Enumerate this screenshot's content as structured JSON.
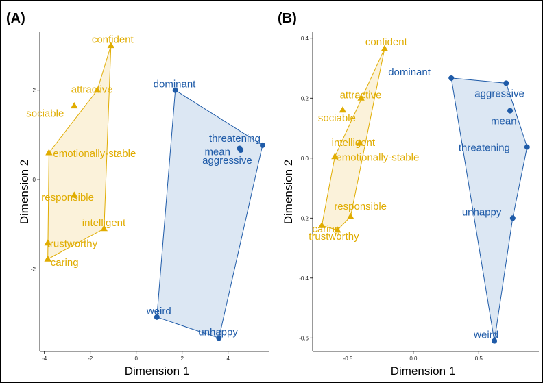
{
  "colors": {
    "group1": "#E0AC00",
    "group2": "#1F5BA8",
    "fill1": "#FBF2DA",
    "fill2": "#DCE7F3"
  },
  "chart_data": [
    {
      "type": "scatter",
      "panel_label": "(A)",
      "xlabel": "Dimension 1",
      "ylabel": "Dimension 2",
      "xlim": [
        -4.2,
        5.8
      ],
      "ylim": [
        -3.85,
        3.3
      ],
      "xticks": [
        -4,
        -2,
        0,
        2,
        4
      ],
      "yticks": [
        -2,
        0,
        2
      ],
      "grid": false,
      "hulls": true,
      "series": [
        {
          "marker": "triangle",
          "color_key": "group1",
          "points": [
            {
              "label": "confident",
              "x": -1.1,
              "y": 3.0
            },
            {
              "label": "attractive",
              "x": -1.7,
              "y": 2.0
            },
            {
              "label": "sociable",
              "x": -2.7,
              "y": 1.65
            },
            {
              "label": "emotionally-stable",
              "x": -3.8,
              "y": 0.6
            },
            {
              "label": "responsible",
              "x": -2.7,
              "y": -0.35
            },
            {
              "label": "intelligent",
              "x": -1.4,
              "y": -1.1
            },
            {
              "label": "trustworthy",
              "x": -3.85,
              "y": -1.42
            },
            {
              "label": "caring",
              "x": -3.85,
              "y": -1.78
            }
          ],
          "hull": [
            "confident",
            "attractive",
            "emotionally-stable",
            "caring",
            "intelligent"
          ]
        },
        {
          "marker": "circle",
          "color_key": "group2",
          "points": [
            {
              "label": "dominant",
              "x": 1.7,
              "y": 2.0
            },
            {
              "label": "threatening",
              "x": 5.5,
              "y": 0.77
            },
            {
              "label": "mean",
              "x": 4.5,
              "y": 0.7
            },
            {
              "label": "aggressive",
              "x": 4.55,
              "y": 0.66
            },
            {
              "label": "weird",
              "x": 0.9,
              "y": -3.08
            },
            {
              "label": "unhappy",
              "x": 3.6,
              "y": -3.55
            }
          ],
          "hull": [
            "dominant",
            "threatening",
            "unhappy",
            "weird"
          ]
        }
      ]
    },
    {
      "type": "scatter",
      "panel_label": "(B)",
      "xlabel": "Dimension 1",
      "ylabel": "Dimension 2",
      "xlim": [
        -0.77,
        0.96
      ],
      "ylim": [
        -0.645,
        0.42
      ],
      "xticks": [
        -0.5,
        0.0,
        0.5
      ],
      "yticks": [
        -0.6,
        -0.4,
        -0.2,
        0.0,
        0.2,
        0.4
      ],
      "grid": false,
      "hulls": true,
      "series": [
        {
          "marker": "triangle",
          "color_key": "group1",
          "points": [
            {
              "label": "confident",
              "x": -0.22,
              "y": 0.365
            },
            {
              "label": "attractive",
              "x": -0.4,
              "y": 0.2
            },
            {
              "label": "sociable",
              "x": -0.54,
              "y": 0.16
            },
            {
              "label": "intelligent",
              "x": -0.41,
              "y": 0.05
            },
            {
              "label": "emotionally-stable",
              "x": -0.6,
              "y": 0.005
            },
            {
              "label": "responsible",
              "x": -0.48,
              "y": -0.195
            },
            {
              "label": "caring",
              "x": -0.7,
              "y": -0.225
            },
            {
              "label": "trustworthy",
              "x": -0.58,
              "y": -0.24
            }
          ],
          "hull": [
            "confident",
            "responsible",
            "trustworthy",
            "caring",
            "emotionally-stable"
          ]
        },
        {
          "marker": "circle",
          "color_key": "group2",
          "points": [
            {
              "label": "dominant",
              "x": 0.29,
              "y": 0.267
            },
            {
              "label": "aggressive",
              "x": 0.71,
              "y": 0.25
            },
            {
              "label": "mean",
              "x": 0.74,
              "y": 0.158
            },
            {
              "label": "threatening",
              "x": 0.87,
              "y": 0.037
            },
            {
              "label": "unhappy",
              "x": 0.76,
              "y": -0.2
            },
            {
              "label": "weird",
              "x": 0.62,
              "y": -0.61
            }
          ],
          "hull": [
            "dominant",
            "aggressive",
            "threatening",
            "unhappy",
            "weird"
          ]
        }
      ]
    }
  ]
}
